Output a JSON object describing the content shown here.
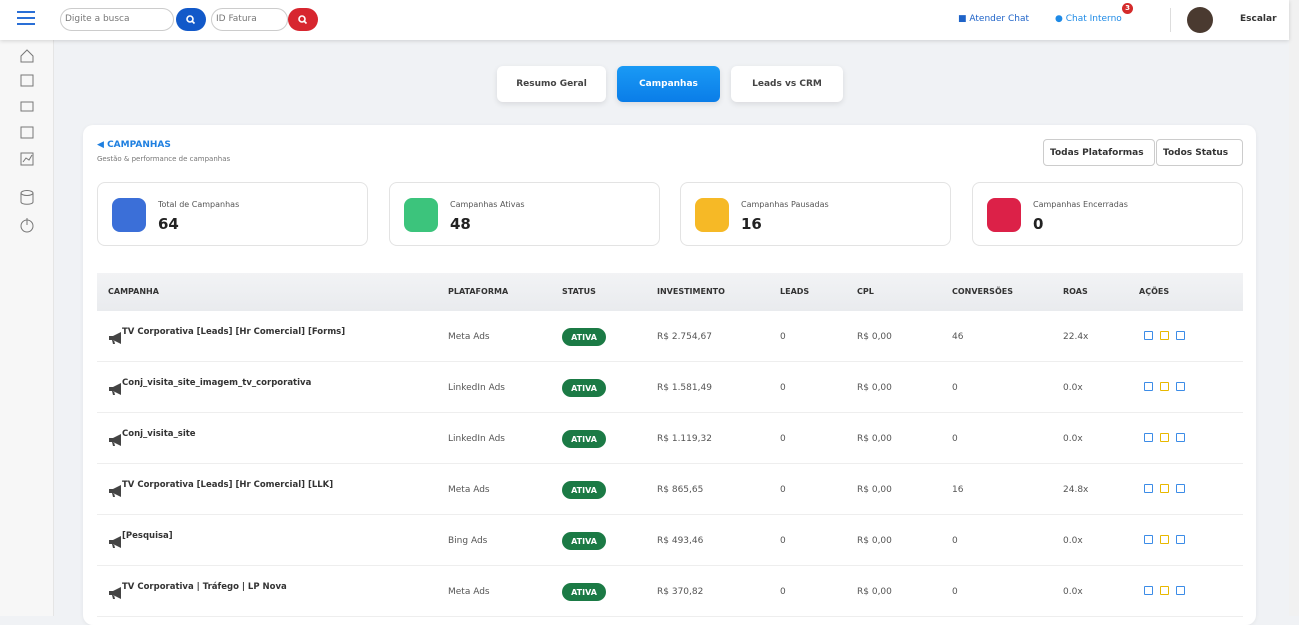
{
  "topbar": {
    "search_placeholder": "Digite a busca",
    "invoice_placeholder": "ID Fatura",
    "atender_chat": "Atender Chat",
    "chat_interno": "Chat Interno",
    "badge": "3",
    "user": "Escalar"
  },
  "tabs": [
    "Resumo Geral",
    "Campanhas",
    "Leads vs CRM"
  ],
  "section": {
    "title": "CAMPANHAS",
    "subtitle": "Gestão & performance de campanhas"
  },
  "filters": [
    "Todas Plataformas",
    "Todos Status"
  ],
  "stats": [
    {
      "label": "Total de Campanhas",
      "value": 64
    },
    {
      "label": "Campanhas Ativas",
      "value": 48
    },
    {
      "label": "Campanhas Pausadas",
      "value": 16
    },
    {
      "label": "Campanhas Encerradas",
      "value": 0
    }
  ],
  "table": {
    "headers": [
      "CAMPANHA",
      "PLATAFORMA",
      "STATUS",
      "INVESTIMENTO",
      "LEADS",
      "CPL",
      "CONVERSÕES",
      "ROAS",
      "AÇÕES"
    ],
    "rows": [
      [
        "TV Corporativa [Leads] [Hr Comercial] [Forms]",
        "Meta Ads",
        "ATIVA",
        "R$ 2.754,67",
        "0",
        "R$ 0,00",
        "46",
        "22.4x"
      ],
      [
        "Conj_visita_site_imagem_tv_corporativa",
        "LinkedIn Ads",
        "ATIVA",
        "R$ 1.581,49",
        "0",
        "R$ 0,00",
        "0",
        "0.0x"
      ],
      [
        "Conj_visita_site",
        "LinkedIn Ads",
        "ATIVA",
        "R$ 1.119,32",
        "0",
        "R$ 0,00",
        "0",
        "0.0x"
      ],
      [
        "TV Corporativa [Leads] [Hr Comercial] [LLK]",
        "Meta Ads",
        "ATIVA",
        "R$ 865,65",
        "0",
        "R$ 0,00",
        "16",
        "24.8x"
      ],
      [
        "[Pesquisa]",
        "Bing Ads",
        "ATIVA",
        "R$ 493,46",
        "0",
        "R$ 0,00",
        "0",
        "0.0x"
      ],
      [
        "TV Corporativa | Tráfego | LP Nova",
        "Meta Ads",
        "ATIVA",
        "R$ 370,82",
        "0",
        "R$ 0,00",
        "0",
        "0.0x"
      ]
    ]
  }
}
